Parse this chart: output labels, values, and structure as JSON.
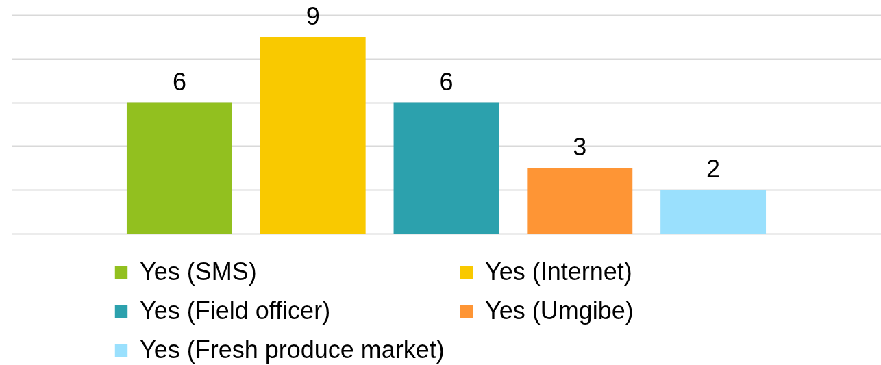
{
  "chart_data": {
    "type": "bar",
    "categories": [
      null
    ],
    "series": [
      {
        "name": "Yes (SMS)",
        "color": "#92c01f",
        "values": [
          6
        ]
      },
      {
        "name": "Yes (Internet)",
        "color": "#f9c900",
        "values": [
          9
        ]
      },
      {
        "name": "Yes (Field officer)",
        "color": "#2ca1ad",
        "values": [
          6
        ]
      },
      {
        "name": "Yes (Umgibe)",
        "color": "#fe9535",
        "values": [
          3
        ]
      },
      {
        "name": "Yes (Fresh produce market)",
        "color": "#9ae0fd",
        "values": [
          2
        ]
      }
    ],
    "ylim": [
      0,
      10
    ],
    "yticks": [
      0,
      2,
      4,
      6,
      8,
      10
    ],
    "grid": "y",
    "legend": "bottom",
    "tick_labels": false,
    "data_labels": true
  }
}
